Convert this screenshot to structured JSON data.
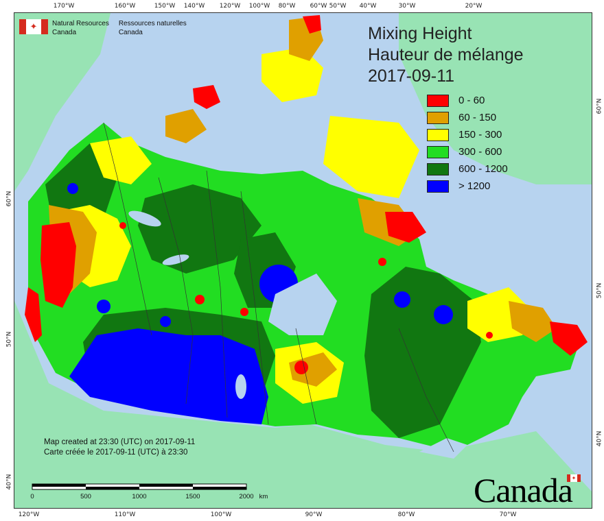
{
  "header": {
    "org_en_line1": "Natural Resources",
    "org_en_line2": "Canada",
    "org_fr_line1": "Ressources naturelles",
    "org_fr_line2": "Canada"
  },
  "title": {
    "line1": "Mixing Height",
    "line2": "Hauteur de mélange",
    "date": "2017-09-11"
  },
  "legend": [
    {
      "label": "0 - 60",
      "color": "#ff0000"
    },
    {
      "label": "60 - 150",
      "color": "#e0a000"
    },
    {
      "label": "150 - 300",
      "color": "#ffff00"
    },
    {
      "label": "300 - 600",
      "color": "#22dd22"
    },
    {
      "label": "600 - 1200",
      "color": "#117711"
    },
    {
      "label": "> 1200",
      "color": "#0000ff"
    }
  ],
  "credits": {
    "line_en": "Map created at 23:30 (UTC) on 2017-09-11",
    "line_fr": "Carte créée le 2017-09-11 (UTC) à 23:30"
  },
  "scalebar": {
    "labels": [
      "0",
      "500",
      "1000",
      "1500",
      "2000"
    ],
    "unit": "km"
  },
  "ticks": {
    "top": [
      "170°W",
      "160°W",
      "150°W",
      "140°W",
      "120°W",
      "100°W",
      "80°W",
      "60°W",
      "50°W",
      "40°W",
      "30°W",
      "20°W"
    ],
    "bottom": [
      "120°W",
      "110°W",
      "100°W",
      "90°W",
      "80°W",
      "70°W"
    ],
    "left": [
      "60°N",
      "50°N",
      "40°N"
    ],
    "right": [
      "60°N",
      "50°N",
      "40°N"
    ]
  },
  "wordmark": "Canada",
  "colors": {
    "ocean": "#b7d3ef",
    "land_outside": "#98e3b4",
    "lakes": "#b7d3ef"
  }
}
